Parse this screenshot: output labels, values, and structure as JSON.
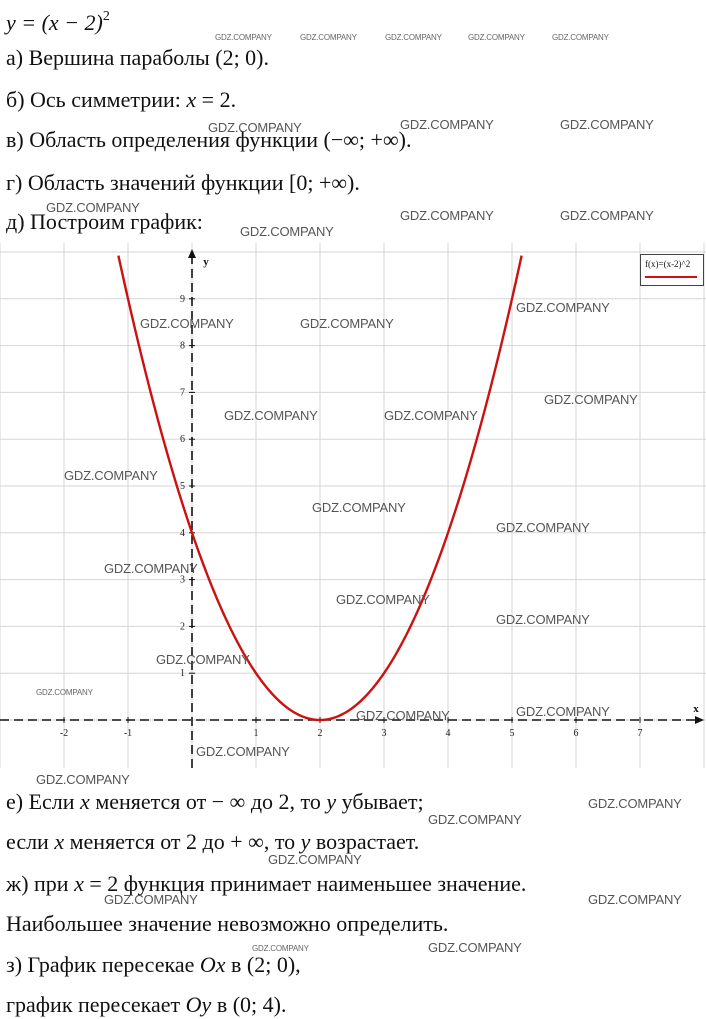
{
  "header": {
    "formula_lhs": "y = (x − 2)",
    "formula_exp": "2"
  },
  "items": {
    "a": "а) Вершина параболы (2; 0).",
    "b_prefix": "б) Ось симметрии: ",
    "b_var": "x",
    "b_suffix": " = 2.",
    "v": "в) Область определения функции (−∞; +∞).",
    "g": "г) Область значений функции [0; +∞).",
    "d": "д) Построим график:",
    "e1_a": "е) Если ",
    "e1_x": "x",
    "e1_b": " меняется от − ∞ до 2, то ",
    "e1_y": "y",
    "e1_c": " убывает;",
    "e2_a": "если ",
    "e2_x": "x",
    "e2_b": " меняется от 2 до + ∞, то ",
    "e2_y": "y",
    "e2_c": " возрастает.",
    "zh1_a": "ж) при ",
    "zh1_x": "x",
    "zh1_b": " = 2 функция принимает наименьшее значение.",
    "zh2": "Наибольшее значение невозможно определить.",
    "z1_a": "з) График пересекае ",
    "z1_ox": "Ox",
    "z1_b": " в (2; 0),",
    "z2_a": "график пересекает ",
    "z2_oy": "Oy",
    "z2_b": " в (0; 4)."
  },
  "legend": {
    "label": "f(x)=(x-2)^2",
    "color": "#cc1111"
  },
  "watermark": "GDZ.COMPANY",
  "chart_data": {
    "type": "line",
    "function": "(x-2)^2",
    "xlabel": "x",
    "ylabel": "y",
    "xlim": [
      -3,
      8
    ],
    "ylim": [
      -0.5,
      10
    ],
    "x_ticks": [
      -2,
      -1,
      1,
      2,
      3,
      4,
      5,
      6,
      7
    ],
    "y_ticks": [
      1,
      2,
      3,
      4,
      5,
      6,
      7,
      8,
      9
    ],
    "grid": true,
    "series": [
      {
        "name": "f(x)=(x-2)^2",
        "color": "#cc1111",
        "x": [
          -1.15,
          -1,
          -0.5,
          0,
          0.5,
          1,
          1.5,
          2,
          2.5,
          3,
          3.5,
          4,
          4.5,
          5,
          5.15
        ],
        "y": [
          9.92,
          9,
          6.25,
          4,
          2.25,
          1,
          0.25,
          0,
          0.25,
          1,
          2.25,
          4,
          6.25,
          9,
          9.92
        ]
      }
    ]
  }
}
